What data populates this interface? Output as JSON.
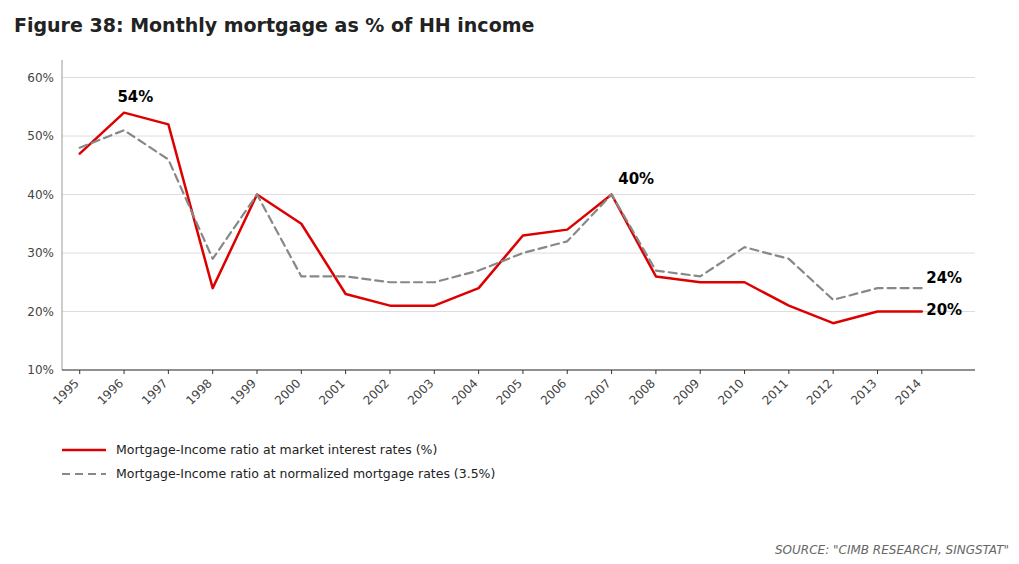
{
  "chart_data": {
    "type": "line",
    "title": "Figure 38: Monthly mortgage as % of HH income",
    "source": "SOURCE: \"CIMB RESEARCH, SINGSTAT\"",
    "x": [
      1995,
      1996,
      1997,
      1998,
      1999,
      2000,
      2001,
      2002,
      2003,
      2004,
      2005,
      2006,
      2007,
      2008,
      2009,
      2010,
      2011,
      2012,
      2013,
      2014
    ],
    "series": [
      {
        "name": "Mortgage-Income ratio at market interest rates (%)",
        "color": "#dd0000",
        "line_style": "solid",
        "values": [
          47,
          54,
          52,
          24,
          40,
          35,
          23,
          21,
          21,
          24,
          33,
          34,
          40,
          26,
          25,
          25,
          21,
          18,
          20,
          20
        ]
      },
      {
        "name": "Mortgage-Income ratio at normalized mortgage rates (3.5%)",
        "color": "#888888",
        "line_style": "dashed",
        "values": [
          48,
          51,
          46,
          29,
          40,
          26,
          26,
          25,
          25,
          27,
          30,
          32,
          40,
          27,
          26,
          31,
          29,
          22,
          24,
          24
        ]
      }
    ],
    "xlim": [
      1994.6,
      2015.2
    ],
    "xticks": [
      1995,
      1996,
      1997,
      1998,
      1999,
      2000,
      2001,
      2002,
      2003,
      2004,
      2005,
      2006,
      2007,
      2008,
      2009,
      2010,
      2011,
      2012,
      2013,
      2014
    ],
    "ylim": [
      10,
      63
    ],
    "yticks": [
      {
        "value": 10,
        "label": "10%"
      },
      {
        "value": 20,
        "label": "20%"
      },
      {
        "value": 30,
        "label": "30%"
      },
      {
        "value": 40,
        "label": "40%"
      },
      {
        "value": 50,
        "label": "50%"
      },
      {
        "value": 60,
        "label": "60%"
      }
    ],
    "grid": true,
    "legend": "bottom",
    "annotations": [
      {
        "text": "54%",
        "x": 1995.85,
        "y": 55.5
      },
      {
        "text": "40%",
        "x": 2007.15,
        "y": 41.5
      },
      {
        "text": "24%",
        "x": 2014.1,
        "y": 24.5
      },
      {
        "text": "20%",
        "x": 2014.1,
        "y": 19.0
      }
    ]
  }
}
